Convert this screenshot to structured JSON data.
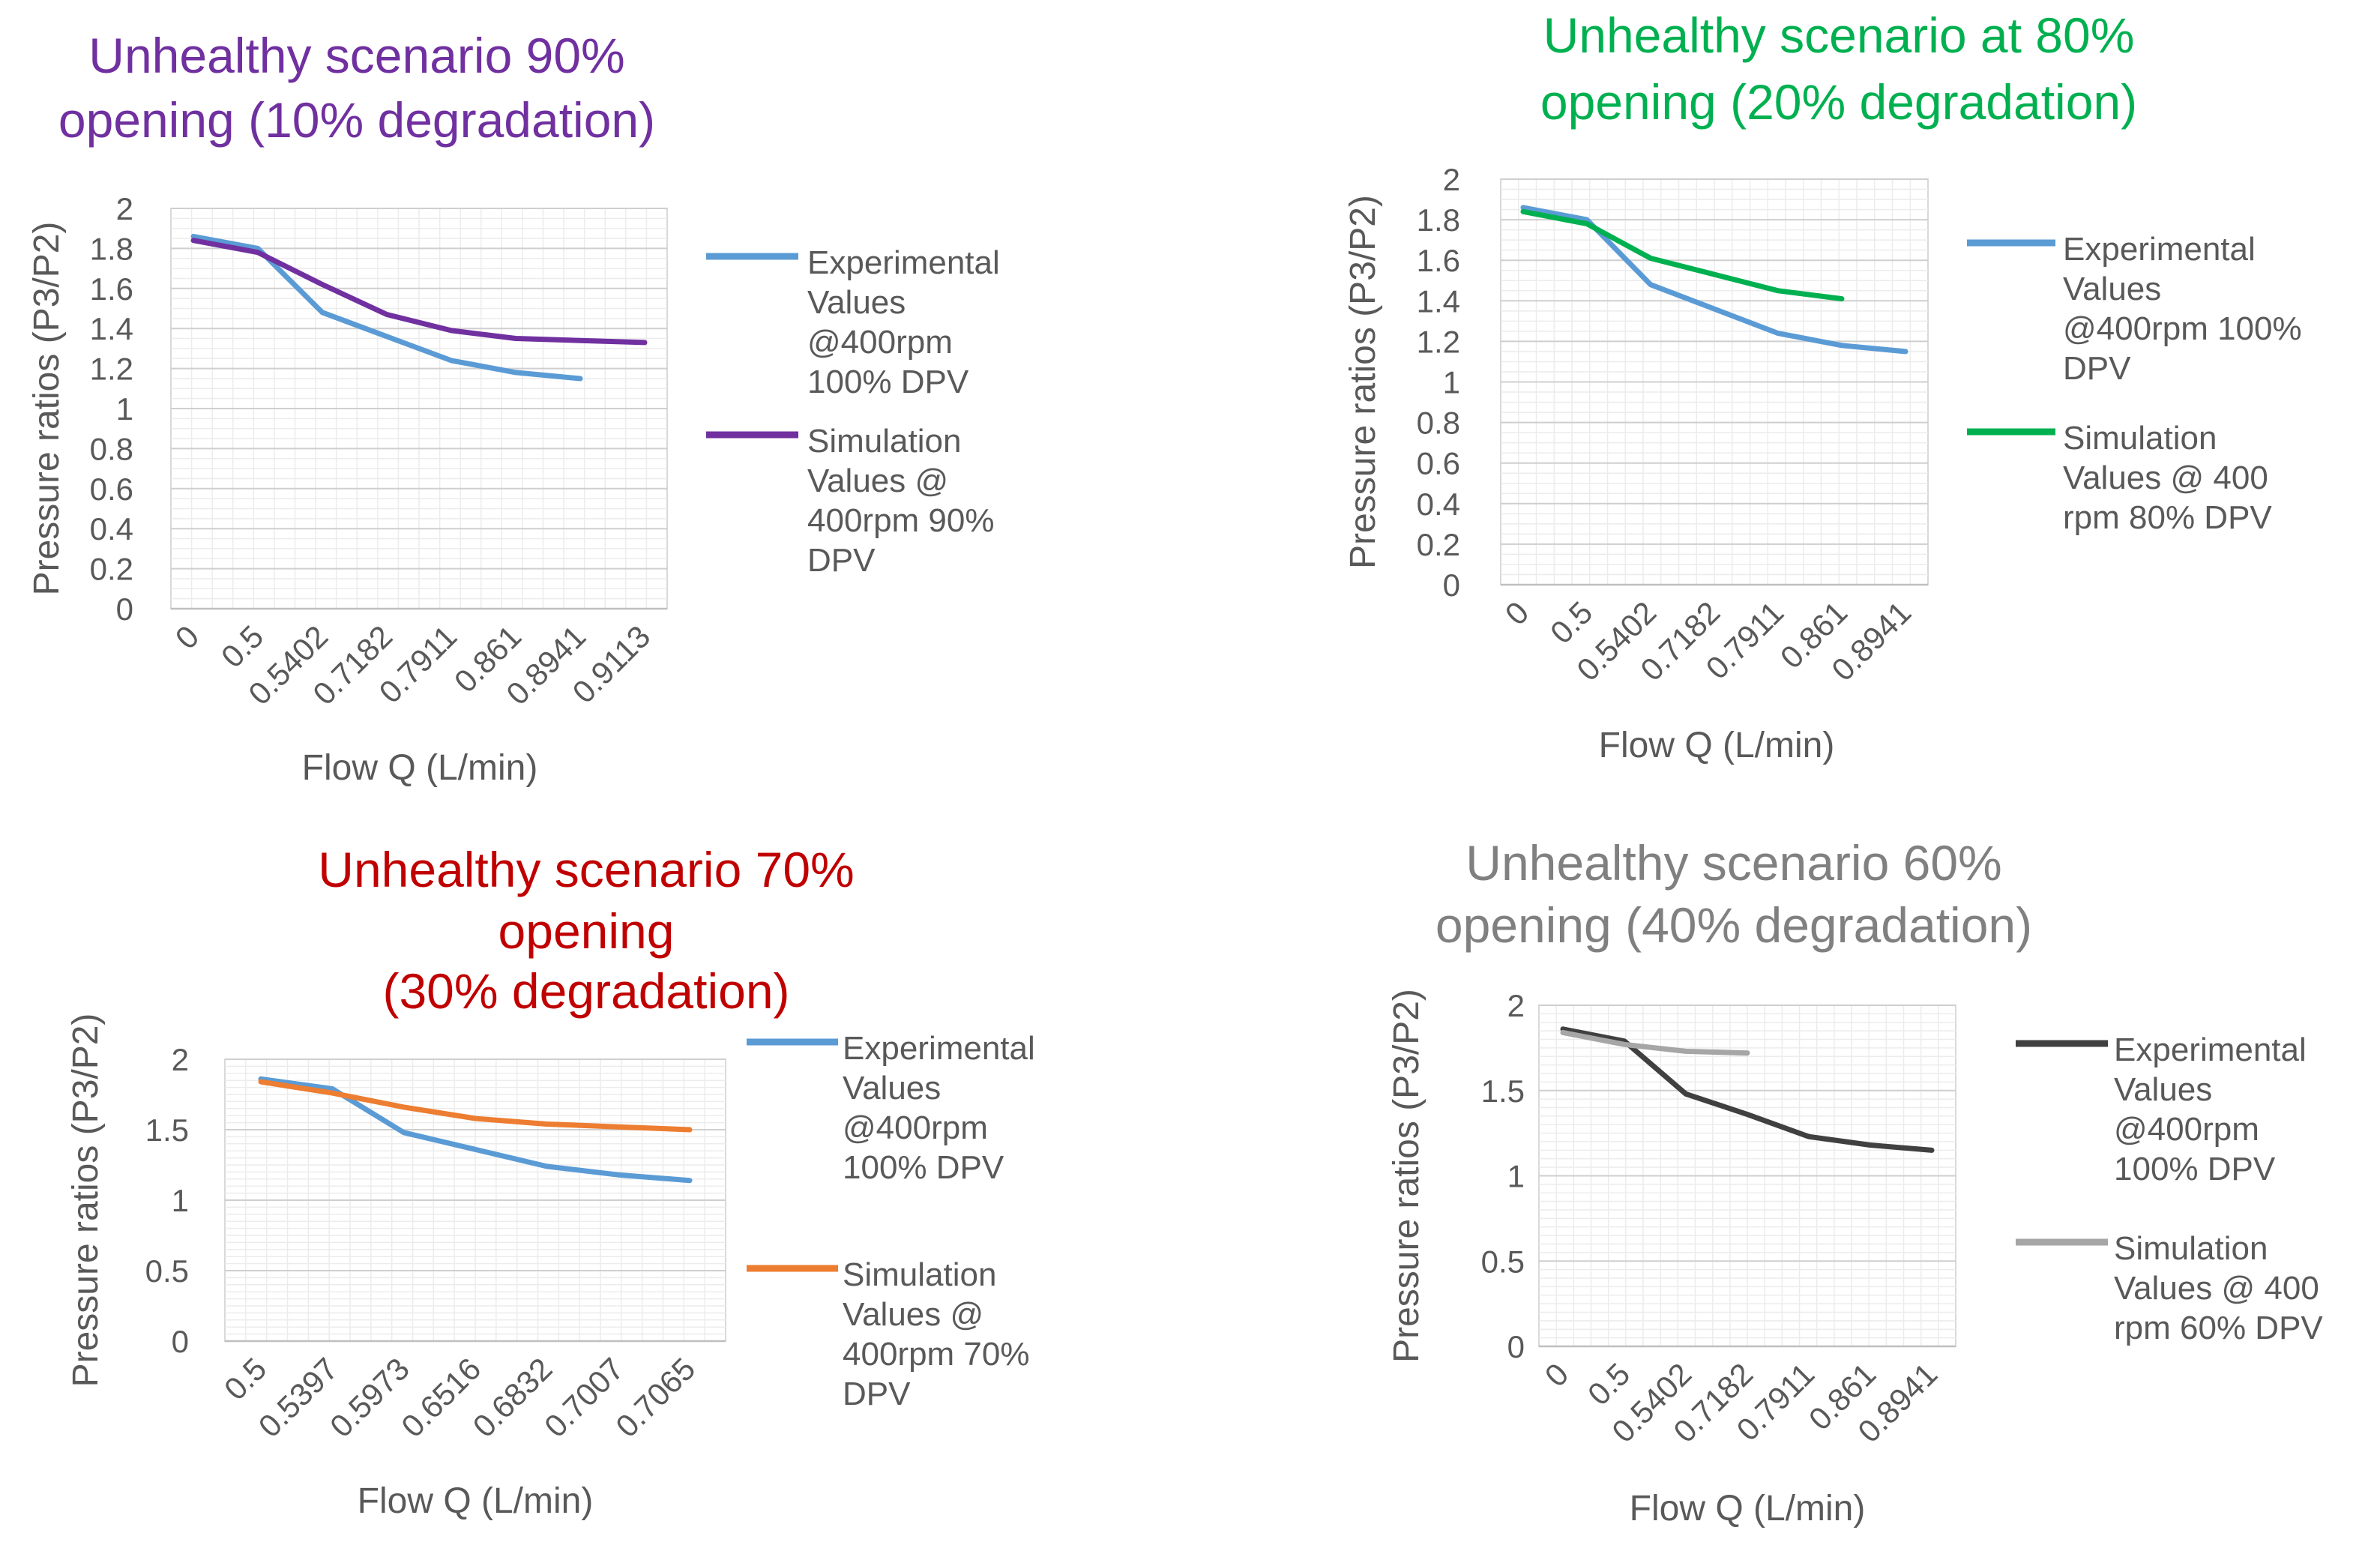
{
  "chart_data": [
    {
      "type": "line",
      "title_lines": [
        "Unhealthy scenario 90%",
        "opening (10% degradation)"
      ],
      "title_color": "#7030a0",
      "xlabel": "Flow Q (L/min)",
      "ylabel": "Pressure ratios (P3/P2)",
      "categories": [
        "0",
        "0.5",
        "0.5402",
        "0.7182",
        "0.7911",
        "0.861",
        "0.8941",
        "0.9113"
      ],
      "ylim": [
        0,
        2
      ],
      "yticks": [
        0,
        0.2,
        0.4,
        0.6,
        0.8,
        1,
        1.2,
        1.4,
        1.6,
        1.8,
        2
      ],
      "ytick_labels": [
        "0",
        "0.2",
        "0.4",
        "0.6",
        "0.8",
        "1",
        "1.2",
        "1.4",
        "1.6",
        "1.8",
        "2"
      ],
      "series": [
        {
          "name": "Experimental Values @400rpm 100% DPV",
          "legend_lines": [
            "Experimental",
            "Values",
            "@400rpm",
            "100% DPV"
          ],
          "color": "#5b9bd5",
          "values": [
            1.86,
            1.8,
            1.48,
            1.36,
            1.24,
            1.18,
            1.15,
            null
          ]
        },
        {
          "name": "Simulation Values @ 400rpm 90% DPV",
          "legend_lines": [
            "Simulation",
            "Values @",
            "400rpm 90%",
            "DPV"
          ],
          "color": "#7030a0",
          "values": [
            1.84,
            1.78,
            1.62,
            1.47,
            1.39,
            1.35,
            1.34,
            1.33
          ]
        }
      ]
    },
    {
      "type": "line",
      "title_lines": [
        "Unhealthy scenario at 80%",
        "opening (20% degradation)"
      ],
      "title_color": "#00b050",
      "xlabel": "Flow Q (L/min)",
      "ylabel": "Pressure ratios (P3/P2)",
      "categories": [
        "0",
        "0.5",
        "0.5402",
        "0.7182",
        "0.7911",
        "0.861",
        "0.8941"
      ],
      "ylim": [
        0,
        2
      ],
      "yticks": [
        0,
        0.2,
        0.4,
        0.6,
        0.8,
        1,
        1.2,
        1.4,
        1.6,
        1.8,
        2
      ],
      "ytick_labels": [
        "0",
        "0.2",
        "0.4",
        "0.6",
        "0.8",
        "1",
        "1.2",
        "1.4",
        "1.6",
        "1.8",
        "2"
      ],
      "series": [
        {
          "name": "Experimental Values @400rpm 100% DPV",
          "legend_lines": [
            "Experimental",
            "Values",
            "@400rpm 100%",
            "DPV"
          ],
          "color": "#5b9bd5",
          "values": [
            1.86,
            1.8,
            1.48,
            1.36,
            1.24,
            1.18,
            1.15
          ]
        },
        {
          "name": "Simulation Values @ 400 rpm 80% DPV",
          "legend_lines": [
            "Simulation",
            "Values @ 400",
            "rpm 80% DPV"
          ],
          "color": "#00b050",
          "values": [
            1.84,
            1.78,
            1.61,
            1.53,
            1.45,
            1.41,
            null
          ]
        }
      ]
    },
    {
      "type": "line",
      "title_lines": [
        "Unhealthy scenario 70%",
        "opening",
        "(30% degradation)"
      ],
      "title_color": "#c00000",
      "xlabel": "Flow Q (L/min)",
      "ylabel": "Pressure ratios (P3/P2)",
      "categories": [
        "0.5",
        "0.5397",
        "0.5973",
        "0.6516",
        "0.6832",
        "0.7007",
        "0.7065"
      ],
      "ylim": [
        0,
        2
      ],
      "yticks": [
        0,
        0.5,
        1,
        1.5,
        2
      ],
      "ytick_labels": [
        "0",
        "0.5",
        "1",
        "1.5",
        "2"
      ],
      "series": [
        {
          "name": "Experimental Values @400rpm 100% DPV",
          "legend_lines": [
            "Experimental",
            "Values",
            "@400rpm",
            "100% DPV"
          ],
          "color": "#5b9bd5",
          "values": [
            1.86,
            1.79,
            1.48,
            1.36,
            1.24,
            1.18,
            1.14
          ]
        },
        {
          "name": "Simulation Values @ 400rpm 70% DPV",
          "legend_lines": [
            "Simulation",
            "Values @",
            "400rpm 70%",
            "DPV"
          ],
          "color": "#ed7d31",
          "values": [
            1.84,
            1.76,
            1.66,
            1.58,
            1.54,
            1.52,
            1.5
          ]
        }
      ]
    },
    {
      "type": "line",
      "title_lines": [
        "Unhealthy scenario 60%",
        "opening (40% degradation)"
      ],
      "title_color": "#808080",
      "xlabel": "Flow Q (L/min)",
      "ylabel": "Pressure ratios (P3/P2)",
      "categories": [
        "0",
        "0.5",
        "0.5402",
        "0.7182",
        "0.7911",
        "0.861",
        "0.8941"
      ],
      "ylim": [
        0,
        2
      ],
      "yticks": [
        0,
        0.5,
        1,
        1.5,
        2
      ],
      "ytick_labels": [
        "0",
        "0.5",
        "1",
        "1.5",
        "2"
      ],
      "series": [
        {
          "name": "Experimental Values @400rpm 100% DPV",
          "legend_lines": [
            "Experimental",
            "Values",
            "@400rpm",
            "100% DPV"
          ],
          "color": "#404040",
          "values": [
            1.86,
            1.79,
            1.48,
            1.36,
            1.23,
            1.18,
            1.15
          ]
        },
        {
          "name": "Simulation Values @ 400 rpm 60% DPV",
          "legend_lines": [
            "Simulation",
            "Values @ 400",
            "rpm 60% DPV"
          ],
          "color": "#a6a6a6",
          "values": [
            1.84,
            1.77,
            1.73,
            1.72,
            null,
            null,
            null
          ]
        }
      ]
    }
  ]
}
